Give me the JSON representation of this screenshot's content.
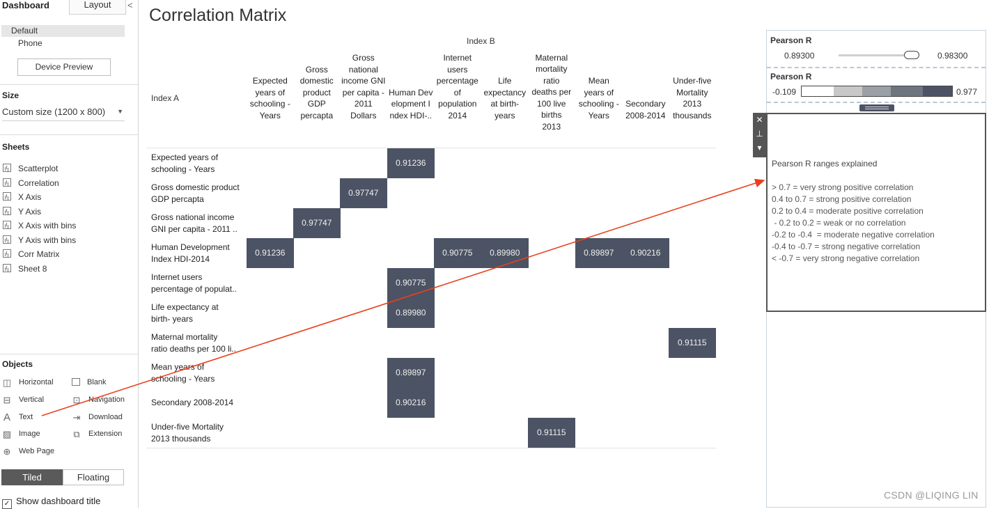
{
  "left_panel": {
    "tab_dashboard": "Dashboard",
    "tab_layout": "Layout",
    "collapse_glyph": "<",
    "device_default": "Default",
    "device_phone": "Phone",
    "device_preview": "Device Preview",
    "size_header": "Size",
    "size_value": "Custom size (1200 x 800)",
    "sheets_header": "Sheets",
    "sheets": [
      "Scatterplot",
      "Correlation",
      "X Axis",
      "Y Axis",
      "X Axis with bins",
      "Y Axis with bins",
      "Corr Matrix",
      "Sheet 8"
    ],
    "objects_header": "Objects",
    "objects": {
      "horizontal": "Horizontal",
      "blank": "Blank",
      "vertical": "Vertical",
      "navigation": "Navigation",
      "text": "Text",
      "download": "Download",
      "image": "Image",
      "extension": "Extension",
      "web_page": "Web Page"
    },
    "tiled": "Tiled",
    "floating": "Floating",
    "show_title": "Show dashboard title",
    "show_title_checked": true
  },
  "main": {
    "title": "Correlation Matrix",
    "index_b": "Index B",
    "index_a": "Index A",
    "columns": [
      [
        "Expected",
        "years of",
        "schooling -",
        "Years"
      ],
      [
        "Gross",
        "domestic",
        "product",
        "GDP",
        "percapta"
      ],
      [
        "Gross",
        "national",
        "income GNI",
        "per capita -",
        "2011",
        "Dollars"
      ],
      [
        "Human Dev",
        "elopment I",
        "ndex HDI-.."
      ],
      [
        "Internet",
        "users",
        "percentage",
        "of",
        "population",
        "2014"
      ],
      [
        "Life",
        "expectancy",
        "at birth-",
        "years"
      ],
      [
        "Maternal",
        "mortality",
        "ratio",
        "deaths per",
        "100 live",
        "births",
        "2013"
      ],
      [
        "Mean",
        "years of",
        "schooling -",
        "Years"
      ],
      [
        "Secondary",
        "2008-2014"
      ],
      [
        "Under-five",
        "Mortality",
        "2013",
        "thousands"
      ]
    ],
    "rows": [
      [
        "Expected years of",
        "schooling - Years"
      ],
      [
        "Gross domestic product",
        "GDP percapta"
      ],
      [
        "Gross national income",
        "GNI per capita - 2011 .."
      ],
      [
        "Human Development",
        "Index HDI-2014"
      ],
      [
        "Internet users",
        "percentage of populat.."
      ],
      [
        "Life expectancy at",
        "birth- years"
      ],
      [
        "Maternal mortality",
        "ratio deaths per 100 li.."
      ],
      [
        "Mean years of",
        "schooling - Years"
      ],
      [
        "Secondary 2008-2014"
      ],
      [
        "Under-five Mortality",
        "2013 thousands"
      ]
    ],
    "cells": [
      {
        "row": 0,
        "col": 3,
        "value": "0.91236"
      },
      {
        "row": 1,
        "col": 2,
        "value": "0.97747"
      },
      {
        "row": 2,
        "col": 1,
        "value": "0.97747"
      },
      {
        "row": 3,
        "col": 0,
        "value": "0.91236"
      },
      {
        "row": 3,
        "col": 4,
        "value": "0.90775"
      },
      {
        "row": 3,
        "col": 5,
        "value": "0.89980"
      },
      {
        "row": 3,
        "col": 7,
        "value": "0.89897"
      },
      {
        "row": 3,
        "col": 8,
        "value": "0.90216"
      },
      {
        "row": 4,
        "col": 3,
        "value": "0.90775"
      },
      {
        "row": 5,
        "col": 3,
        "value": "0.89980"
      },
      {
        "row": 6,
        "col": 9,
        "value": "0.91115"
      },
      {
        "row": 7,
        "col": 3,
        "value": "0.89897"
      },
      {
        "row": 8,
        "col": 3,
        "value": "0.90216"
      },
      {
        "row": 9,
        "col": 6,
        "value": "0.91115"
      }
    ],
    "cell_color": "#4c5364"
  },
  "right_panel": {
    "filter_label": "Pearson R",
    "filter_min": "0.89300",
    "filter_max": "0.98300",
    "legend_label": "Pearson R",
    "legend_min": "-0.109",
    "legend_max": "0.977",
    "legend_colors": [
      "#ffffff",
      "#c8c8c8",
      "#9aa0a6",
      "#6d757e",
      "#4c5364"
    ],
    "textbox_title": "Pearson R ranges explained",
    "textbox_lines": [
      "> 0.7 = very strong positive correlation",
      "0.4 to 0.7 = strong positive correlation",
      "0.2 to 0.4 = moderate positive correlation",
      " - 0.2 to 0.2 = weak or no correlation",
      "-0.2 to -0.4  = moderate negative correlation",
      "-0.4 to -0.7 = strong negative correlation",
      "< -0.7 = very strong negative correlation"
    ],
    "toolbar_icons": [
      "close-icon",
      "pin-icon",
      "more-icon"
    ],
    "watermark": "CSDN @LIQING LIN"
  },
  "annotation_color": "#e8401c"
}
